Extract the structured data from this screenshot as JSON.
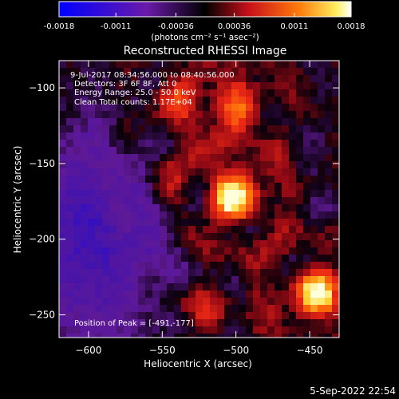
{
  "chart_data": {
    "type": "heatmap",
    "title": "Reconstructed RHESSI Image",
    "xlabel": "Heliocentric X (arcsec)",
    "ylabel": "Heliocentric Y (arcsec)",
    "xlim": [
      -620,
      -430
    ],
    "ylim": [
      -265,
      -82
    ],
    "xticks": [
      -600,
      -550,
      -500,
      -450
    ],
    "yticks": [
      -100,
      -150,
      -200,
      -250
    ],
    "colorbar": {
      "unit_label": "(photons cm⁻² s⁻¹ asec⁻²)",
      "range": [
        -0.0018,
        0.0018
      ],
      "ticks": [
        "-0.0018",
        "-0.0011",
        "-0.00036",
        "0.00036",
        "0.0011",
        "0.0018"
      ]
    },
    "annotations": [
      "9-Jul-2017 08:34:56.000 to 08:40:56.000",
      "Detectors: 3F 6F 8F, Att 0",
      "Energy Range: 25.0 - 50.0 keV",
      "Clean    Total counts: 1.17E+04"
    ],
    "peak_label": "Position of Peak = [-491,-177]",
    "sources": [
      {
        "x": -502,
        "y": -172,
        "peak": 1.0
      },
      {
        "x": -445,
        "y": -236,
        "peak": 0.88
      },
      {
        "x": -500,
        "y": -112,
        "peak": 0.55
      },
      {
        "x": -538,
        "y": -110,
        "peak": 0.45
      },
      {
        "x": -520,
        "y": -243,
        "peak": 0.35
      },
      {
        "x": -548,
        "y": -160,
        "peak": 0.3
      }
    ]
  },
  "footer": {
    "date": "5-Sep-2022 22:54"
  }
}
